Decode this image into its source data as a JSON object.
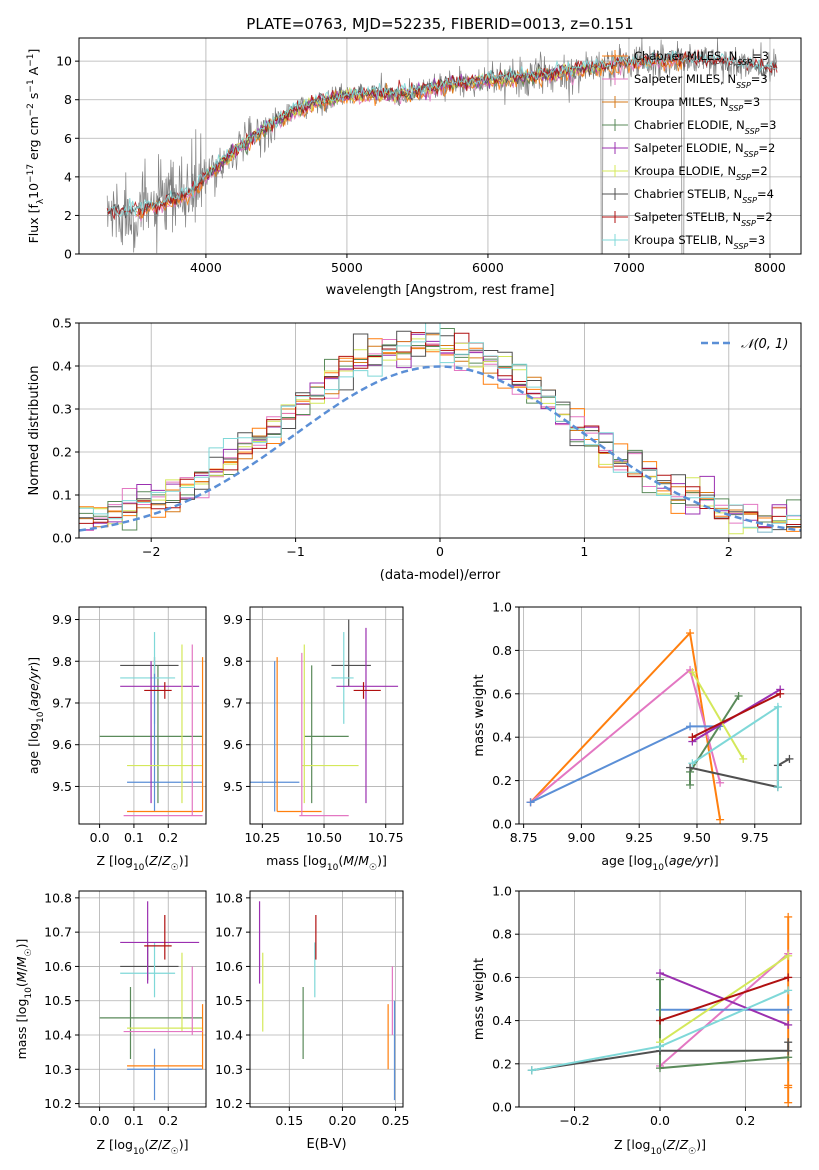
{
  "figure": {
    "title": "PLATE=0763, MJD=52235, FIBERID=0013, z=0.151"
  },
  "colors": {
    "obs": "#808080",
    "Chabrier MILES": "#ff7f0e",
    "Salpeter MILES": "#e377c2",
    "Kroupa MILES": "#d67818",
    "Chabrier ELODIE": "#5a8a5a",
    "Salpeter ELODIE": "#9b30b0",
    "Kroupa ELODIE": "#d4e85a",
    "Chabrier STELIB": "#505050",
    "Salpeter STELIB": "#b01010",
    "Kroupa STELIB": "#7fd8d8",
    "normal": "#5b8fd6"
  },
  "chart_data": [
    {
      "id": "spectrum",
      "type": "line",
      "xlabel": "wavelength [Angstrom, rest frame]",
      "ylabel": "Flux [f_λ10^-17 erg cm^-2 s^-1 A^-1]",
      "xlim": [
        3100,
        8220
      ],
      "ylim": [
        0,
        11.2
      ],
      "xticks": [
        4000,
        5000,
        6000,
        7000,
        8000
      ],
      "yticks": [
        0,
        2,
        4,
        6,
        8,
        10
      ],
      "legend_position": "top-right",
      "legend": [
        "Chabrier MILES, N_SSP=3",
        "Salpeter MILES, N_SSP=3",
        "Kroupa MILES, N_SSP=3",
        "Chabrier ELODIE, N_SSP=3",
        "Salpeter ELODIE, N_SSP=2",
        "Kroupa ELODIE, N_SSP=2",
        "Chabrier STELIB, N_SSP=4",
        "Salpeter STELIB, N_SSP=2",
        "Kroupa STELIB, N_SSP=3"
      ],
      "continuum": {
        "x": [
          3300,
          3500,
          3700,
          3900,
          4000,
          4200,
          4400,
          4600,
          4800,
          5000,
          5200,
          5400,
          5600,
          5800,
          6000,
          6200,
          6400,
          6600,
          6800,
          7000,
          7200,
          7400,
          7600,
          7800,
          8000
        ],
        "y": [
          2.1,
          2.2,
          2.6,
          3.2,
          4.0,
          5.3,
          6.4,
          7.3,
          7.9,
          8.2,
          8.3,
          8.3,
          8.6,
          8.9,
          9.0,
          9.1,
          9.3,
          9.5,
          9.7,
          9.9,
          10.0,
          10.1,
          10.0,
          9.8,
          9.6
        ]
      }
    },
    {
      "id": "residuals",
      "type": "line",
      "xlabel": "(data-model)/error",
      "ylabel": "Normed distribution",
      "xlim": [
        -2.5,
        2.5
      ],
      "ylim": [
        0,
        0.5
      ],
      "xticks": [
        -2,
        -1,
        0,
        1,
        2
      ],
      "yticks": [
        0.0,
        0.1,
        0.2,
        0.3,
        0.4,
        0.5
      ],
      "legend_position": "top-right",
      "normal_label": "N(0,1)"
    },
    {
      "id": "age_vs_Z",
      "type": "scatter",
      "xlabel": "Z [log10(Z/Z☉)]",
      "ylabel": "age  [log10(age/yr)]",
      "xlim": [
        -0.06,
        0.31
      ],
      "ylim": [
        9.41,
        9.93
      ],
      "xticks": [
        0.0,
        0.1,
        0.2
      ],
      "yticks": [
        9.5,
        9.6,
        9.7,
        9.8,
        9.9
      ],
      "points": [
        {
          "c": "#505050",
          "x": 0.16,
          "xe": [
            0.06,
            0.23
          ],
          "y": 9.79,
          "ye": [
            9.76,
            9.81
          ]
        },
        {
          "c": "#5a8a5a",
          "x": 0.17,
          "xe": [
            0.0,
            0.3
          ],
          "y": 9.62,
          "ye": [
            9.46,
            9.79
          ]
        },
        {
          "c": "#7fd8d8",
          "x": 0.16,
          "xe": [
            0.06,
            0.22
          ],
          "y": 9.76,
          "ye": [
            9.65,
            9.87
          ]
        },
        {
          "c": "#5b8fd6",
          "x": 0.16,
          "xe": [
            0.08,
            0.3
          ],
          "y": 9.51,
          "ye": [
            9.44,
            9.77
          ]
        },
        {
          "c": "#9b30b0",
          "x": 0.15,
          "xe": [
            0.06,
            0.29
          ],
          "y": 9.74,
          "ye": [
            9.46,
            9.8
          ]
        },
        {
          "c": "#b01010",
          "x": 0.19,
          "xe": [
            0.13,
            0.21
          ],
          "y": 9.73,
          "ye": [
            9.71,
            9.75
          ]
        },
        {
          "c": "#d4e85a",
          "x": 0.24,
          "xe": [
            0.08,
            0.3
          ],
          "y": 9.55,
          "ye": [
            9.46,
            9.84
          ]
        },
        {
          "c": "#ff7f0e",
          "x": 0.3,
          "xe": [
            0.08,
            0.3
          ],
          "y": 9.44,
          "ye": [
            9.44,
            9.81
          ]
        },
        {
          "c": "#e377c2",
          "x": 0.27,
          "xe": [
            0.07,
            0.3
          ],
          "y": 9.43,
          "ye": [
            9.43,
            9.84
          ]
        }
      ]
    },
    {
      "id": "age_vs_mass",
      "type": "scatter",
      "xlabel": "mass [log10(M/M☉)]",
      "ylabel": "",
      "xlim": [
        10.2,
        10.82
      ],
      "ylim": [
        9.41,
        9.93
      ],
      "xticks": [
        10.25,
        10.5,
        10.75
      ],
      "yticks": [
        9.5,
        9.6,
        9.7,
        9.8,
        9.9
      ],
      "points": [
        {
          "c": "#505050",
          "x": 10.6,
          "xe": [
            10.53,
            10.69
          ],
          "y": 9.79,
          "ye": [
            9.74,
            9.9
          ]
        },
        {
          "c": "#5a8a5a",
          "x": 10.45,
          "xe": [
            10.42,
            10.6
          ],
          "y": 9.62,
          "ye": [
            9.46,
            9.79
          ]
        },
        {
          "c": "#7fd8d8",
          "x": 10.58,
          "xe": [
            10.53,
            10.62
          ],
          "y": 9.76,
          "ye": [
            9.65,
            9.87
          ]
        },
        {
          "c": "#5b8fd6",
          "x": 10.3,
          "xe": [
            10.2,
            10.4
          ],
          "y": 9.51,
          "ye": [
            9.44,
            9.8
          ]
        },
        {
          "c": "#9b30b0",
          "x": 10.67,
          "xe": [
            10.55,
            10.8
          ],
          "y": 9.74,
          "ye": [
            9.46,
            9.88
          ]
        },
        {
          "c": "#b01010",
          "x": 10.66,
          "xe": [
            10.62,
            10.73
          ],
          "y": 9.73,
          "ye": [
            9.71,
            9.75
          ]
        },
        {
          "c": "#d4e85a",
          "x": 10.42,
          "xe": [
            10.41,
            10.64
          ],
          "y": 9.55,
          "ye": [
            9.46,
            9.84
          ]
        },
        {
          "c": "#ff7f0e",
          "x": 10.31,
          "xe": [
            10.31,
            10.49
          ],
          "y": 9.44,
          "ye": [
            9.44,
            9.81
          ]
        },
        {
          "c": "#e377c2",
          "x": 10.41,
          "xe": [
            10.4,
            10.6
          ],
          "y": 9.43,
          "ye": [
            9.43,
            9.82
          ]
        }
      ]
    },
    {
      "id": "weight_vs_age",
      "type": "line",
      "xlabel": "age  [log10(age/yr)]",
      "ylabel": "mass weight",
      "xlim": [
        8.73,
        9.95
      ],
      "ylim": [
        0,
        1
      ],
      "xticks": [
        8.75,
        9.0,
        9.25,
        9.5,
        9.75
      ],
      "yticks": [
        0.0,
        0.2,
        0.4,
        0.6,
        0.8,
        1.0
      ],
      "series": [
        {
          "c": "#ff7f0e",
          "x": [
            8.78,
            9.47,
            9.6
          ],
          "y": [
            0.1,
            0.88,
            0.02
          ]
        },
        {
          "c": "#e377c2",
          "x": [
            8.78,
            9.47,
            9.6
          ],
          "y": [
            0.1,
            0.71,
            0.19
          ]
        },
        {
          "c": "#5b8fd6",
          "x": [
            8.78,
            9.47,
            9.6
          ],
          "y": [
            0.1,
            0.45,
            0.45
          ]
        },
        {
          "c": "#5a8a5a",
          "x": [
            9.47,
            9.47,
            9.68
          ],
          "y": [
            0.18,
            0.24,
            0.59
          ]
        },
        {
          "c": "#9b30b0",
          "x": [
            9.48,
            9.86
          ],
          "y": [
            0.38,
            0.62
          ]
        },
        {
          "c": "#d4e85a",
          "x": [
            9.48,
            9.7
          ],
          "y": [
            0.7,
            0.3
          ]
        },
        {
          "c": "#505050",
          "x": [
            9.47,
            9.85,
            9.85,
            9.9
          ],
          "y": [
            0.26,
            0.17,
            0.27,
            0.3
          ]
        },
        {
          "c": "#b01010",
          "x": [
            9.48,
            9.86
          ],
          "y": [
            0.4,
            0.6
          ]
        },
        {
          "c": "#7fd8d8",
          "x": [
            9.48,
            9.85,
            9.85
          ],
          "y": [
            0.28,
            0.54,
            0.17
          ]
        }
      ]
    },
    {
      "id": "mass_vs_Z",
      "type": "scatter",
      "xlabel": "Z [log10(Z/Z☉)]",
      "ylabel": "mass [log10(M/M☉)]",
      "xlim": [
        -0.06,
        0.31
      ],
      "ylim": [
        10.19,
        10.82
      ],
      "xticks": [
        0.0,
        0.1,
        0.2
      ],
      "yticks": [
        10.2,
        10.3,
        10.4,
        10.5,
        10.6,
        10.7,
        10.8
      ],
      "points": [
        {
          "c": "#505050",
          "x": 0.14,
          "xe": [
            0.06,
            0.23
          ],
          "y": 10.6,
          "ye": [
            10.56,
            10.66
          ]
        },
        {
          "c": "#5a8a5a",
          "x": 0.09,
          "xe": [
            0.0,
            0.3
          ],
          "y": 10.45,
          "ye": [
            10.33,
            10.54
          ]
        },
        {
          "c": "#7fd8d8",
          "x": 0.16,
          "xe": [
            0.06,
            0.22
          ],
          "y": 10.58,
          "ye": [
            10.51,
            10.67
          ]
        },
        {
          "c": "#5b8fd6",
          "x": 0.16,
          "xe": [
            0.08,
            0.3
          ],
          "y": 10.3,
          "ye": [
            10.21,
            10.36
          ]
        },
        {
          "c": "#9b30b0",
          "x": 0.14,
          "xe": [
            0.06,
            0.29
          ],
          "y": 10.67,
          "ye": [
            10.55,
            10.79
          ]
        },
        {
          "c": "#b01010",
          "x": 0.19,
          "xe": [
            0.13,
            0.21
          ],
          "y": 10.66,
          "ye": [
            10.62,
            10.75
          ]
        },
        {
          "c": "#d4e85a",
          "x": 0.24,
          "xe": [
            0.08,
            0.3
          ],
          "y": 10.42,
          "ye": [
            10.41,
            10.64
          ]
        },
        {
          "c": "#ff7f0e",
          "x": 0.3,
          "xe": [
            0.08,
            0.3
          ],
          "y": 10.31,
          "ye": [
            10.3,
            10.49
          ]
        },
        {
          "c": "#e377c2",
          "x": 0.27,
          "xe": [
            0.07,
            0.3
          ],
          "y": 10.41,
          "ye": [
            10.4,
            10.6
          ]
        }
      ]
    },
    {
      "id": "mass_vs_ebv",
      "type": "scatter",
      "xlabel": "E(B-V)",
      "ylabel": "",
      "xlim": [
        0.113,
        0.257
      ],
      "ylim": [
        10.19,
        10.82
      ],
      "xticks": [
        0.15,
        0.2,
        0.25
      ],
      "yticks": [
        10.2,
        10.3,
        10.4,
        10.5,
        10.6,
        10.7,
        10.8
      ],
      "points": [
        {
          "c": "#9b30b0",
          "x": 0.122,
          "y": 10.67,
          "ye": [
            10.55,
            10.79
          ]
        },
        {
          "c": "#d4e85a",
          "x": 0.125,
          "y": 10.42,
          "ye": [
            10.41,
            10.64
          ]
        },
        {
          "c": "#5a8a5a",
          "x": 0.163,
          "y": 10.45,
          "ye": [
            10.33,
            10.54
          ]
        },
        {
          "c": "#7fd8d8",
          "x": 0.174,
          "y": 10.58,
          "ye": [
            10.51,
            10.67
          ]
        },
        {
          "c": "#b01010",
          "x": 0.175,
          "y": 10.66,
          "ye": [
            10.62,
            10.75
          ]
        },
        {
          "c": "#ff7f0e",
          "x": 0.243,
          "y": 10.31,
          "ye": [
            10.3,
            10.49
          ]
        },
        {
          "c": "#e377c2",
          "x": 0.247,
          "y": 10.41,
          "ye": [
            10.4,
            10.6
          ]
        },
        {
          "c": "#5b8fd6",
          "x": 0.249,
          "y": 10.3,
          "ye": [
            10.21,
            10.5
          ]
        }
      ]
    },
    {
      "id": "weight_vs_Z",
      "type": "line",
      "xlabel": "Z [log10(Z/Z☉)]",
      "ylabel": "mass weight",
      "xlim": [
        -0.33,
        0.33
      ],
      "ylim": [
        0,
        1
      ],
      "xticks": [
        -0.2,
        0.0,
        0.2
      ],
      "yticks": [
        0.0,
        0.2,
        0.4,
        0.6,
        0.8,
        1.0
      ],
      "series": [
        {
          "c": "#ff7f0e",
          "x": [
            0.3,
            0.3,
            0.3,
            0.3
          ],
          "y": [
            0.02,
            0.88,
            0.1,
            0.09
          ]
        },
        {
          "c": "#e377c2",
          "x": [
            0.0,
            0.3
          ],
          "y": [
            0.19,
            0.71
          ]
        },
        {
          "c": "#5b8fd6",
          "x": [
            0.0,
            0.3
          ],
          "y": [
            0.45,
            0.45
          ]
        },
        {
          "c": "#5a8a5a",
          "x": [
            0.0,
            0.0,
            0.3
          ],
          "y": [
            0.59,
            0.18,
            0.23
          ]
        },
        {
          "c": "#9b30b0",
          "x": [
            0.0,
            0.3
          ],
          "y": [
            0.62,
            0.38
          ]
        },
        {
          "c": "#d4e85a",
          "x": [
            0.0,
            0.3
          ],
          "y": [
            0.3,
            0.7
          ]
        },
        {
          "c": "#505050",
          "x": [
            -0.3,
            0.0,
            0.3,
            0.3
          ],
          "y": [
            0.17,
            0.26,
            0.26,
            0.3
          ]
        },
        {
          "c": "#b01010",
          "x": [
            0.0,
            0.3
          ],
          "y": [
            0.4,
            0.6
          ]
        },
        {
          "c": "#7fd8d8",
          "x": [
            -0.3,
            0.0,
            0.3
          ],
          "y": [
            0.17,
            0.28,
            0.54
          ]
        }
      ]
    }
  ]
}
